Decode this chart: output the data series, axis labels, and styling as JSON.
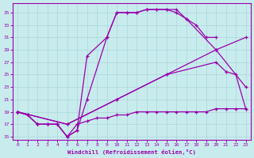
{
  "xlabel": "Windchill (Refroidissement éolien,°C)",
  "bg_color": "#c8ecee",
  "line_color": "#9900aa",
  "grid_color": "#aad4d8",
  "xlim": [
    -0.5,
    23.5
  ],
  "ylim": [
    14.5,
    36.5
  ],
  "xticks": [
    0,
    1,
    2,
    3,
    4,
    5,
    6,
    7,
    8,
    9,
    10,
    11,
    12,
    13,
    14,
    15,
    16,
    17,
    18,
    19,
    20,
    21,
    22,
    23
  ],
  "yticks": [
    15,
    17,
    19,
    21,
    23,
    25,
    27,
    29,
    31,
    33,
    35
  ],
  "line1_x": [
    0,
    1,
    2,
    3,
    4,
    5,
    6,
    7,
    9,
    10,
    11,
    12,
    13,
    14,
    15,
    16,
    17,
    18,
    19,
    20
  ],
  "line1_y": [
    19,
    18.5,
    17,
    17,
    17,
    15,
    16,
    21,
    31,
    35,
    35,
    35,
    35.5,
    35.5,
    35.5,
    35,
    34,
    33,
    31,
    31
  ],
  "line2_x": [
    0,
    1,
    2,
    3,
    4,
    5,
    6,
    7,
    9,
    10,
    11,
    12,
    13,
    14,
    15,
    16,
    17,
    20,
    23
  ],
  "line2_y": [
    19,
    18.5,
    17,
    17,
    17,
    15,
    16,
    28,
    31,
    35,
    35,
    35,
    35.5,
    35.5,
    35.5,
    35.5,
    34,
    29,
    23
  ],
  "line3_x": [
    0,
    5,
    10,
    15,
    20,
    23
  ],
  "line3_y": [
    19,
    17,
    21,
    25,
    29,
    31
  ],
  "line4_x": [
    0,
    5,
    10,
    15,
    20,
    21,
    22,
    23
  ],
  "line4_y": [
    19,
    17,
    21,
    25,
    27,
    25.5,
    25,
    19.5
  ],
  "line5_x": [
    0,
    1,
    2,
    3,
    4,
    5,
    6,
    7,
    8,
    9,
    10,
    11,
    12,
    13,
    14,
    15,
    16,
    17,
    18,
    19,
    20,
    21,
    22,
    23
  ],
  "line5_y": [
    19,
    18.5,
    17,
    17,
    17,
    15,
    17,
    17.5,
    18,
    18,
    18.5,
    18.5,
    19,
    19,
    19,
    19,
    19,
    19,
    19,
    19,
    19.5,
    19.5,
    19.5,
    19.5
  ]
}
